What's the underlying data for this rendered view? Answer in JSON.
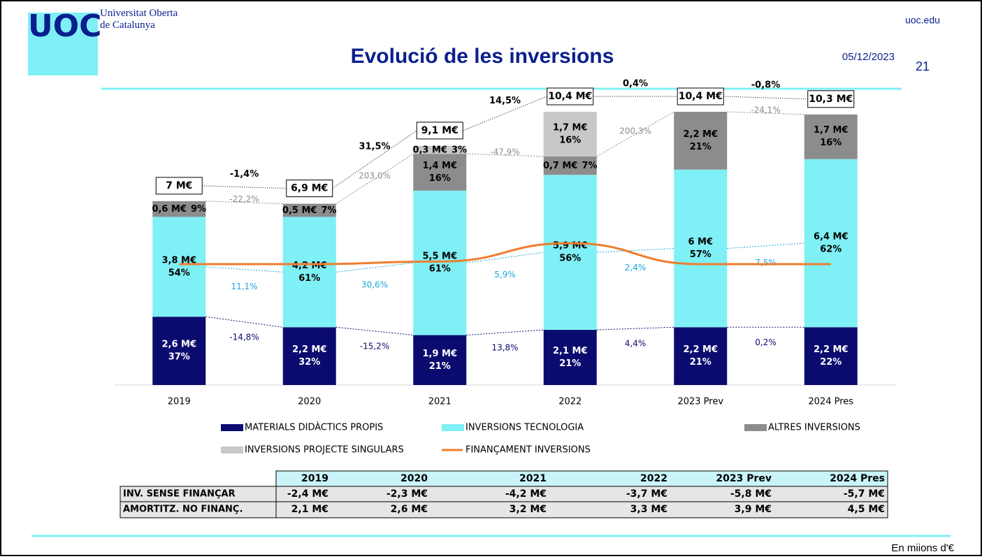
{
  "header": {
    "logo": "UOC",
    "university": "Universitat Oberta\nde Catalunya",
    "site": "uoc.edu",
    "page": "21",
    "date": "05/12/2023"
  },
  "chart_data": {
    "type": "bar",
    "stacked": true,
    "title": "Evolució de les inversions",
    "categories": [
      "2019",
      "2020",
      "2021",
      "2022",
      "2023 Prev",
      "2024 Pres"
    ],
    "series": [
      {
        "name": "MATERIALS DIDÀCTICS PROPIS",
        "color": "#0b0b6f",
        "label_color": "#ffffff",
        "values": [
          2.6,
          2.2,
          1.9,
          2.1,
          2.2,
          2.2
        ],
        "value_labels": [
          "2,6 M€",
          "2,2 M€",
          "1,9 M€",
          "2,1 M€",
          "2,2 M€",
          "2,2 M€"
        ],
        "shares": [
          37,
          32,
          21,
          21,
          21,
          22
        ],
        "share_labels": [
          "37%",
          "32%",
          "21%",
          "21%",
          "21%",
          "22%"
        ],
        "growth": [
          -14.8,
          -15.2,
          13.8,
          4.4,
          0.2
        ],
        "growth_labels": [
          "-14,8%",
          "-15,2%",
          "13,8%",
          "4,4%",
          "0,2%"
        ],
        "growth_color": "#0b0b6f"
      },
      {
        "name": "INVERSIONS TECNOLOGIA",
        "color": "#7ff0f6",
        "label_color": "#000000",
        "values": [
          3.8,
          4.2,
          5.5,
          5.9,
          6,
          6.4
        ],
        "value_labels": [
          "3,8 M€",
          "4,2 M€",
          "5,5 M€",
          "5,9 M€",
          "6 M€",
          "6,4 M€"
        ],
        "shares": [
          54,
          61,
          61,
          56,
          57,
          62
        ],
        "share_labels": [
          "54%",
          "61%",
          "61%",
          "56%",
          "57%",
          "62%"
        ],
        "growth": [
          11.1,
          30.6,
          5.9,
          2.4,
          7.5
        ],
        "growth_labels": [
          "11,1%",
          "30,6%",
          "5,9%",
          "2,4%",
          "7,5%"
        ],
        "growth_color": "#1aa7e0"
      },
      {
        "name": "ALTRES INVERSIONS",
        "color": "#8c8c8c",
        "label_color": "#000000",
        "values": [
          0.6,
          0.5,
          1.4,
          0.7,
          2.2,
          1.7
        ],
        "value_labels": [
          "0,6 M€",
          "0,5 M€",
          "1,4 M€",
          "0,7 M€",
          "2,2 M€",
          "1,7 M€"
        ],
        "shares": [
          9,
          7,
          16,
          7,
          21,
          16
        ],
        "share_labels": [
          "9%",
          "7%",
          "16%",
          "7%",
          "21%",
          "16%"
        ],
        "growth": [
          -22.2,
          203.0,
          -47.9,
          200.3,
          -24.1
        ],
        "growth_labels": [
          "-22,2%",
          "203,0%",
          "-47,9%",
          "200,3%",
          "-24,1%"
        ],
        "growth_color": "#8c8c8c"
      },
      {
        "name": "INVERSIONS PROJECTE SINGULARS",
        "color": "#c8c8c8",
        "label_color": "#000000",
        "values": [
          null,
          null,
          0.3,
          1.7,
          null,
          null
        ],
        "value_labels": [
          null,
          null,
          "0,3 M€",
          "1,7 M€",
          null,
          null
        ],
        "shares": [
          null,
          null,
          3,
          16,
          null,
          null
        ],
        "share_labels": [
          null,
          null,
          "3%",
          "16%",
          null,
          null
        ]
      },
      {
        "name": "FINANÇAMENT INVERSIONS",
        "type": "line",
        "color": "#ef7d2e",
        "values": [
          4.6,
          4.6,
          4.7,
          5.4,
          4.6,
          4.6
        ]
      }
    ],
    "totals": {
      "values": [
        7,
        6.9,
        9.1,
        10.4,
        10.4,
        10.3
      ],
      "value_labels": [
        "7 M€",
        "6,9 M€",
        "9,1 M€",
        "10,4 M€",
        "10,4 M€",
        "10,3 M€"
      ],
      "growth": [
        -1.4,
        31.5,
        14.5,
        0.4,
        -0.8
      ],
      "growth_labels": [
        "-1,4%",
        "31,5%",
        "14,5%",
        "0,4%",
        "-0,8%"
      ]
    }
  },
  "table": {
    "columns": [
      "2019",
      "2020",
      "2021",
      "2022",
      "2023 Prev",
      "2024 Pres"
    ],
    "rows": [
      {
        "label": "INV. SENSE FINANÇAR",
        "cells": [
          "-2,4 M€",
          "-2,3 M€",
          "-4,2 M€",
          "-3,7 M€",
          "-5,8 M€",
          "-5,7 M€"
        ]
      },
      {
        "label": "AMORTITZ. NO FINANÇ.",
        "cells": [
          "2,1 M€",
          "2,6 M€",
          "3,2 M€",
          "3,3 M€",
          "3,9 M€",
          "4,5 M€"
        ]
      }
    ]
  },
  "footer": {
    "note": "En miions d'€"
  }
}
